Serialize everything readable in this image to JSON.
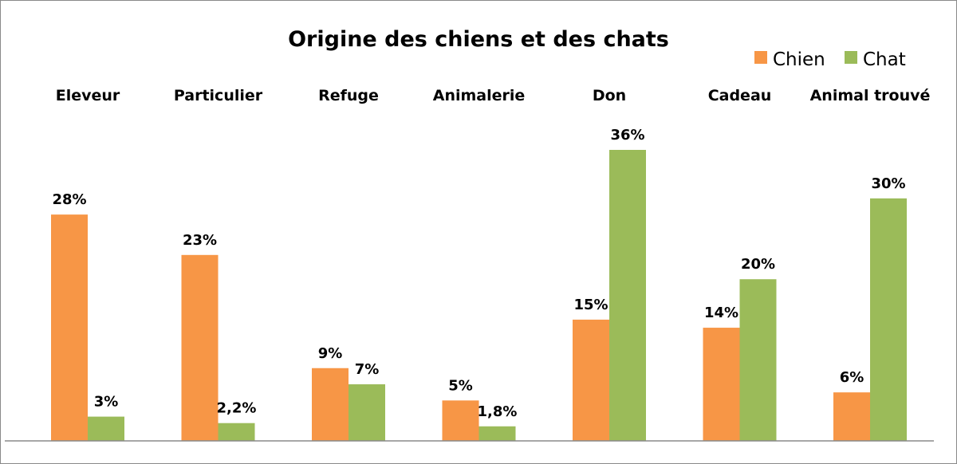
{
  "chart_data": {
    "type": "bar",
    "title": "Origine des chiens  et des chats",
    "categories": [
      "Eleveur",
      "Particulier",
      "Refuge",
      "Animalerie",
      "Don",
      "Cadeau",
      "Animal trouvé"
    ],
    "series": [
      {
        "name": "Chien",
        "color": "#F79646",
        "values": [
          28,
          23,
          9,
          5,
          15,
          14,
          6
        ],
        "labels": [
          "28%",
          "23%",
          "9%",
          "5%",
          "15%",
          "14%",
          "6%"
        ]
      },
      {
        "name": "Chat",
        "color": "#9BBB59",
        "values": [
          3,
          2.2,
          7,
          1.8,
          36,
          20,
          30
        ],
        "labels": [
          "3%",
          "2,2%",
          "7%",
          "1,8%",
          "36%",
          "20%",
          "30%"
        ]
      }
    ],
    "ylim": [
      0,
      36
    ],
    "grid": false,
    "legend_position": "top-right",
    "xlabel": "",
    "ylabel": ""
  }
}
